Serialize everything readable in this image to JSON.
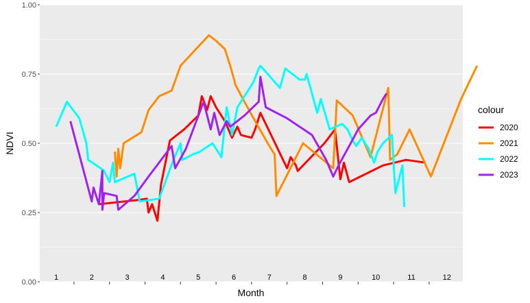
{
  "chart_data": {
    "type": "line",
    "xlabel": "Month",
    "ylabel": "NDVI",
    "xlim": [
      1,
      13.5
    ],
    "ylim": [
      0,
      1
    ],
    "y_ticks": [
      0.0,
      0.25,
      0.5,
      0.75,
      1.0
    ],
    "y_tick_labels": [
      "0.00",
      "0.25",
      "0.50",
      "0.75",
      "1.00"
    ],
    "month_labels": [
      "1",
      "2",
      "3",
      "4",
      "5",
      "6",
      "7",
      "8",
      "9",
      "10",
      "11",
      "12"
    ],
    "grid": true,
    "legend_title": "colour",
    "legend_position": "right",
    "series": [
      {
        "name": "2020",
        "color": "#FF0000",
        "points": [
          [
            2.2,
            0.28
          ],
          [
            3.3,
            0.295
          ],
          [
            3.55,
            0.3
          ],
          [
            3.6,
            0.25
          ],
          [
            3.7,
            0.28
          ],
          [
            3.85,
            0.22
          ],
          [
            3.95,
            0.35
          ],
          [
            4.2,
            0.51
          ],
          [
            4.6,
            0.55
          ],
          [
            5.0,
            0.6
          ],
          [
            5.1,
            0.67
          ],
          [
            5.25,
            0.62
          ],
          [
            5.35,
            0.67
          ],
          [
            5.5,
            0.63
          ],
          [
            5.75,
            0.58
          ],
          [
            5.95,
            0.52
          ],
          [
            6.1,
            0.56
          ],
          [
            6.2,
            0.53
          ],
          [
            6.5,
            0.52
          ],
          [
            6.6,
            0.55
          ],
          [
            6.75,
            0.61
          ],
          [
            7.5,
            0.41
          ],
          [
            7.6,
            0.45
          ],
          [
            7.75,
            0.42
          ],
          [
            7.8,
            0.4
          ],
          [
            8.55,
            0.5
          ],
          [
            8.85,
            0.55
          ],
          [
            9.0,
            0.37
          ],
          [
            9.1,
            0.43
          ],
          [
            9.25,
            0.36
          ],
          [
            10.2,
            0.42
          ],
          [
            10.85,
            0.44
          ],
          [
            11.4,
            0.43
          ]
        ]
      },
      {
        "name": "2021",
        "color": "#FF8C00",
        "points": [
          [
            2.65,
            0.47
          ],
          [
            2.7,
            0.38
          ],
          [
            2.75,
            0.48
          ],
          [
            2.8,
            0.41
          ],
          [
            2.9,
            0.5
          ],
          [
            3.4,
            0.54
          ],
          [
            3.6,
            0.62
          ],
          [
            3.9,
            0.67
          ],
          [
            4.25,
            0.69
          ],
          [
            4.5,
            0.78
          ],
          [
            5.3,
            0.89
          ],
          [
            5.5,
            0.87
          ],
          [
            5.75,
            0.84
          ],
          [
            5.9,
            0.78
          ],
          [
            6.05,
            0.71
          ],
          [
            6.3,
            0.65
          ],
          [
            6.6,
            0.58
          ],
          [
            7.0,
            0.49
          ],
          [
            7.15,
            0.46
          ],
          [
            7.2,
            0.31
          ],
          [
            7.95,
            0.5
          ],
          [
            8.8,
            0.41
          ],
          [
            8.9,
            0.655
          ],
          [
            9.35,
            0.6
          ],
          [
            9.85,
            0.45
          ],
          [
            10.15,
            0.6
          ],
          [
            10.35,
            0.7
          ],
          [
            10.4,
            0.44
          ],
          [
            10.6,
            0.46
          ],
          [
            10.95,
            0.55
          ],
          [
            11.55,
            0.38
          ],
          [
            12.4,
            0.66
          ],
          [
            12.85,
            0.78
          ]
        ]
      },
      {
        "name": "2022",
        "color": "#00FFFF",
        "points": [
          [
            1.0,
            0.56
          ],
          [
            1.3,
            0.65
          ],
          [
            1.65,
            0.59
          ],
          [
            1.85,
            0.5
          ],
          [
            1.9,
            0.44
          ],
          [
            2.25,
            0.41
          ],
          [
            2.35,
            0.4
          ],
          [
            2.5,
            0.36
          ],
          [
            2.6,
            0.43
          ],
          [
            2.65,
            0.36
          ],
          [
            3.2,
            0.39
          ],
          [
            3.35,
            0.29
          ],
          [
            3.9,
            0.3
          ],
          [
            4.3,
            0.44
          ],
          [
            4.5,
            0.5
          ],
          [
            4.55,
            0.44
          ],
          [
            4.85,
            0.46
          ],
          [
            5.05,
            0.47
          ],
          [
            5.4,
            0.5
          ],
          [
            5.65,
            0.45
          ],
          [
            5.8,
            0.63
          ],
          [
            5.95,
            0.53
          ],
          [
            6.1,
            0.63
          ],
          [
            6.3,
            0.67
          ],
          [
            6.55,
            0.72
          ],
          [
            6.7,
            0.77
          ],
          [
            6.75,
            0.78
          ],
          [
            7.3,
            0.7
          ],
          [
            7.45,
            0.77
          ],
          [
            7.75,
            0.74
          ],
          [
            7.85,
            0.73
          ],
          [
            8.0,
            0.73
          ],
          [
            8.05,
            0.75
          ],
          [
            8.35,
            0.61
          ],
          [
            8.45,
            0.66
          ],
          [
            8.7,
            0.55
          ],
          [
            9.05,
            0.57
          ],
          [
            9.2,
            0.55
          ],
          [
            9.35,
            0.51
          ],
          [
            9.45,
            0.49
          ],
          [
            9.6,
            0.52
          ],
          [
            9.8,
            0.48
          ],
          [
            9.95,
            0.43
          ],
          [
            10.05,
            0.47
          ],
          [
            10.2,
            0.5
          ],
          [
            10.45,
            0.53
          ],
          [
            10.55,
            0.32
          ],
          [
            10.75,
            0.42
          ],
          [
            10.8,
            0.27
          ]
        ]
      },
      {
        "name": "2023",
        "color": "#A020F0",
        "points": [
          [
            1.4,
            0.58
          ],
          [
            2.0,
            0.29
          ],
          [
            2.05,
            0.34
          ],
          [
            2.2,
            0.28
          ],
          [
            2.3,
            0.4
          ],
          [
            2.3,
            0.26
          ],
          [
            2.35,
            0.32
          ],
          [
            2.7,
            0.31
          ],
          [
            2.75,
            0.26
          ],
          [
            3.2,
            0.31
          ],
          [
            3.6,
            0.38
          ],
          [
            4.25,
            0.49
          ],
          [
            4.35,
            0.41
          ],
          [
            4.65,
            0.48
          ],
          [
            5.15,
            0.65
          ],
          [
            5.35,
            0.55
          ],
          [
            5.45,
            0.61
          ],
          [
            5.6,
            0.53
          ],
          [
            5.8,
            0.58
          ],
          [
            5.9,
            0.56
          ],
          [
            6.3,
            0.6
          ],
          [
            6.7,
            0.65
          ],
          [
            6.75,
            0.74
          ],
          [
            6.9,
            0.63
          ],
          [
            7.5,
            0.59
          ],
          [
            8.2,
            0.53
          ],
          [
            8.6,
            0.44
          ],
          [
            8.8,
            0.38
          ],
          [
            8.95,
            0.42
          ],
          [
            9.25,
            0.49
          ],
          [
            9.5,
            0.55
          ],
          [
            9.85,
            0.6
          ],
          [
            10.0,
            0.61
          ],
          [
            10.2,
            0.66
          ],
          [
            10.3,
            0.68
          ]
        ]
      }
    ]
  }
}
